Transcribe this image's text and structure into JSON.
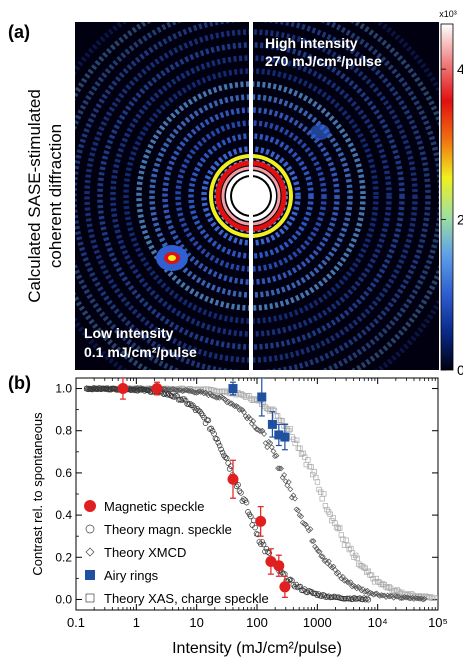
{
  "panel_a": {
    "label": "(a)",
    "ylabel_line1": "Calculated SASE-stimulated",
    "ylabel_line2": "coherent diffraction",
    "right_title_line1": "High intensity",
    "right_title_line2": "270 mJ/cm²/pulse",
    "left_title_line1": "Low intensity",
    "left_title_line2": "0.1 mJ/cm²/pulse",
    "colorbar": {
      "multiplier": "x10³",
      "ticks": [
        {
          "value": 0,
          "label": "0"
        },
        {
          "value": 2,
          "label": "2"
        },
        {
          "value": 4,
          "label": "4"
        }
      ],
      "range": [
        0,
        4.6
      ],
      "colors": [
        "#000010",
        "#0a2a8a",
        "#2f5fd0",
        "#5fa0e8",
        "#9fe0a0",
        "#f0f020",
        "#f07010",
        "#e01010",
        "#f08080",
        "#ffffff"
      ]
    }
  },
  "chart_data": {
    "type": "scatter",
    "label": "(b)",
    "xlabel": "Intensity (mJ/cm²/pulse)",
    "ylabel": "Contrast rel. to spontaneous",
    "xscale": "log",
    "xlim": [
      0.1,
      100000
    ],
    "ylim": [
      -0.05,
      1.05
    ],
    "xticks": [
      {
        "value": 0.1,
        "label": "0.1"
      },
      {
        "value": 1,
        "label": "1"
      },
      {
        "value": 10,
        "label": "10"
      },
      {
        "value": 100,
        "label": "100"
      },
      {
        "value": 1000,
        "label": "1000"
      },
      {
        "value": 10000,
        "label": "10⁴"
      },
      {
        "value": 100000,
        "label": "10⁵"
      }
    ],
    "yticks": [
      0.0,
      0.2,
      0.4,
      0.6,
      0.8,
      1.0
    ],
    "ytick_labels": [
      "0.0",
      "0.2",
      "0.4",
      "0.6",
      "0.8",
      "1.0"
    ],
    "legend_position": "left",
    "series": [
      {
        "name": "Magnetic speckle",
        "marker": "filled-circle",
        "color": "#e02020",
        "points": [
          [
            0.6,
            1.0,
            0.05
          ],
          [
            2.2,
            1.0,
            0.03
          ],
          [
            40,
            0.57,
            0.09
          ],
          [
            115,
            0.37,
            0.07
          ],
          [
            170,
            0.18,
            0.06
          ],
          [
            230,
            0.16,
            0.05
          ],
          [
            290,
            0.06,
            0.05
          ]
        ]
      },
      {
        "name": "Theory magn. speckle",
        "marker": "open-circle",
        "color": "#333333",
        "model": {
          "x50": 55,
          "width": 0.55,
          "start": 0.15,
          "end": 7000,
          "count": 200
        }
      },
      {
        "name": "Theory XMCD",
        "marker": "open-diamond",
        "color": "#555555",
        "model": {
          "x50": 380,
          "width": 0.62,
          "start": 0.15,
          "end": 60000,
          "count": 220
        }
      },
      {
        "name": "Airy rings",
        "marker": "filled-square",
        "color": "#2050a0",
        "points": [
          [
            40,
            1.0,
            0.03
          ],
          [
            120,
            0.96,
            0.09
          ],
          [
            180,
            0.83,
            0.06
          ],
          [
            230,
            0.78,
            0.05
          ],
          [
            290,
            0.77,
            0.06
          ]
        ]
      },
      {
        "name": "Theory XAS, charge speckle",
        "marker": "open-square",
        "color": "#aaaaaa",
        "model": {
          "x50": 1200,
          "width": 0.62,
          "start": 0.15,
          "end": 90000,
          "count": 220
        }
      }
    ]
  }
}
